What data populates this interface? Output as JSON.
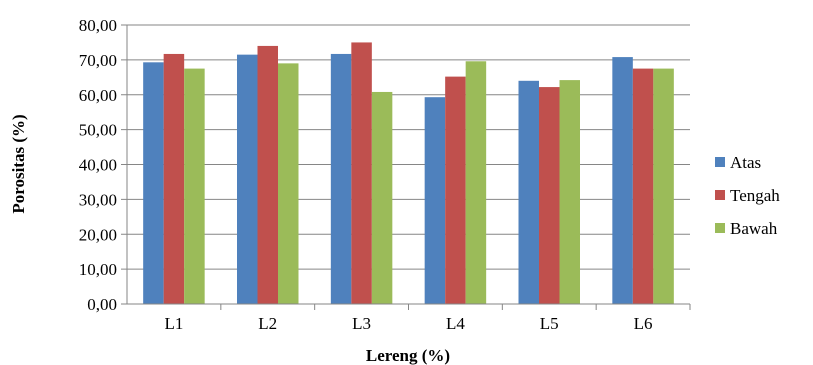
{
  "chart_data": {
    "type": "bar",
    "title": "",
    "xlabel": "Lereng (%)",
    "ylabel": "Porositas (%)",
    "categories": [
      "L1",
      "L2",
      "L3",
      "L4",
      "L5",
      "L6"
    ],
    "ylim": [
      0,
      80
    ],
    "yticks": [
      "0,00",
      "10,00",
      "20,00",
      "30,00",
      "40,00",
      "50,00",
      "60,00",
      "70,00",
      "80,00"
    ],
    "grid": true,
    "legend_position": "right",
    "series": [
      {
        "name": "Atas",
        "color": "#4F81BD",
        "values": [
          69.3,
          71.5,
          71.7,
          59.3,
          64.0,
          70.8
        ]
      },
      {
        "name": "Tengah",
        "color": "#C0504D",
        "values": [
          71.7,
          74.0,
          75.0,
          65.2,
          62.2,
          67.5
        ]
      },
      {
        "name": "Bawah",
        "color": "#9BBB59",
        "values": [
          67.5,
          69.0,
          60.8,
          69.6,
          64.2,
          67.5
        ]
      }
    ]
  }
}
